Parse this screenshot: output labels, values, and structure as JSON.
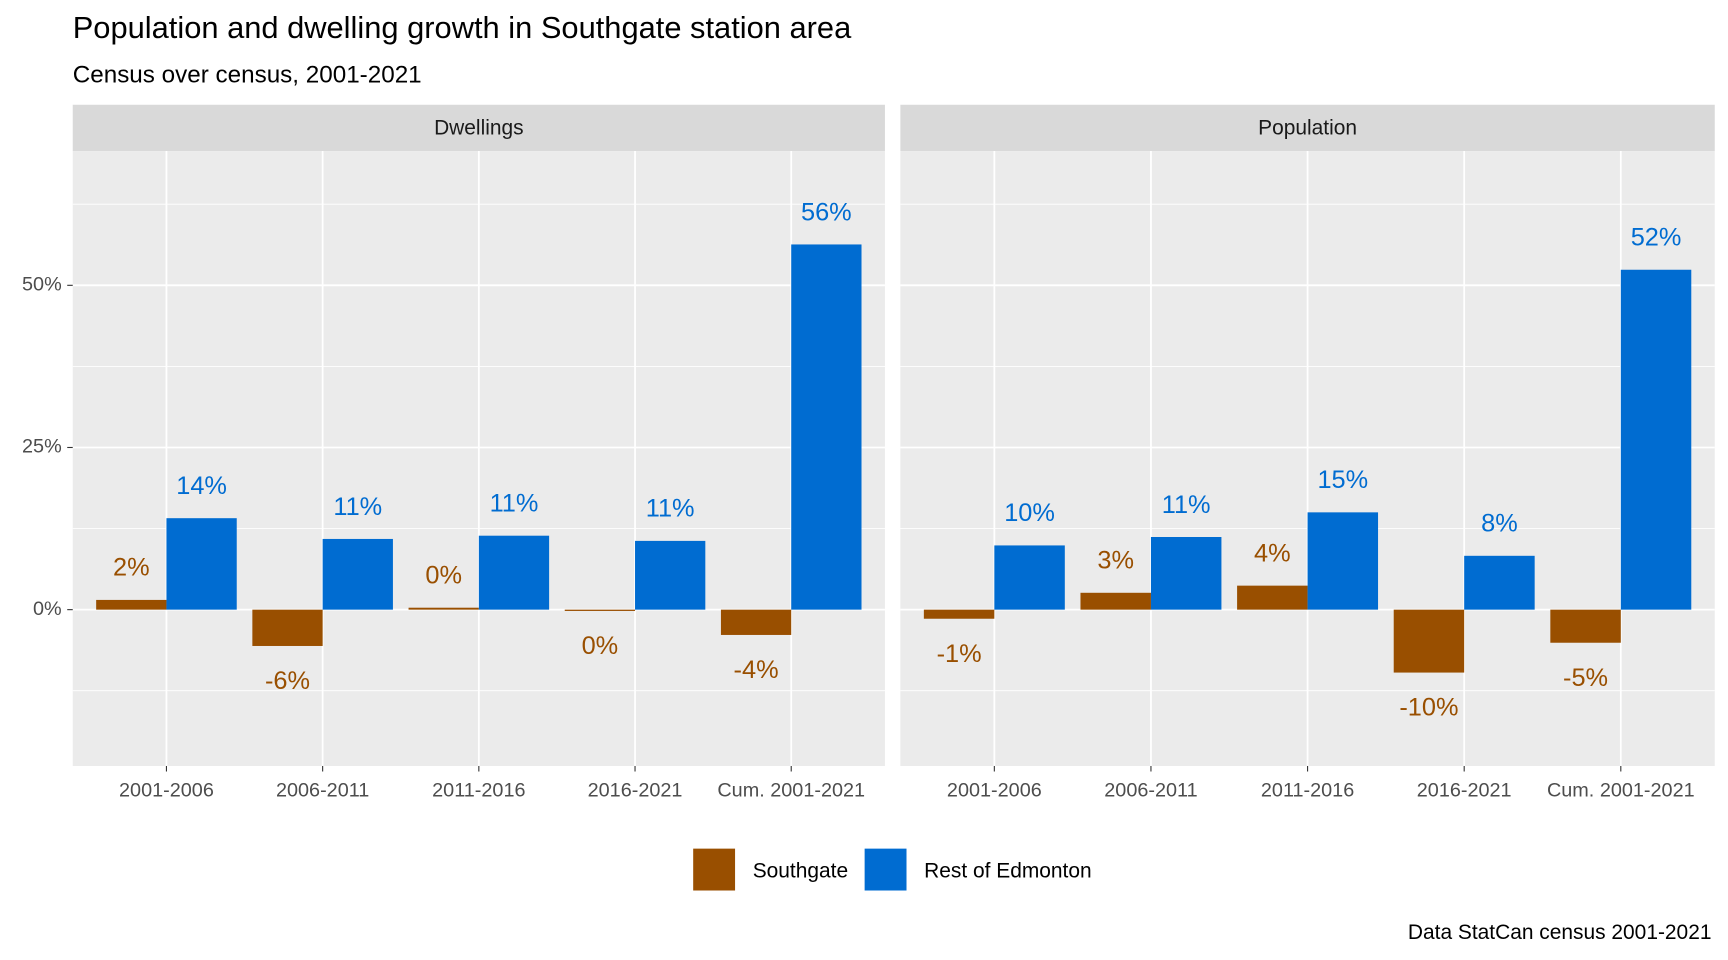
{
  "title": "Population and dwelling growth in Southgate station area",
  "subtitle": "Census over census, 2001-2021",
  "caption": "Data StatCan census 2001-2021",
  "chart_data": [
    {
      "type": "bar",
      "facet": "Dwellings",
      "categories": [
        "2001-2006",
        "2006-2011",
        "2011-2016",
        "2016-2021",
        "Cum. 2001-2021"
      ],
      "series": [
        {
          "name": "Southgate",
          "color": "#994f00",
          "values": [
            1.5,
            -5.6,
            0.3,
            -0.2,
            -3.9
          ],
          "value_labels": [
            "2%",
            "-6%",
            "0%",
            "0%",
            "-4%"
          ]
        },
        {
          "name": "Rest of Edmonton",
          "color": "#006cd1",
          "values": [
            14.1,
            10.9,
            11.4,
            10.6,
            56.3
          ],
          "value_labels": [
            "14%",
            "11%",
            "11%",
            "11%",
            "56%"
          ]
        }
      ],
      "ylim": [
        -24.1,
        70.7
      ],
      "yticks": [
        {
          "value": 0,
          "label": "0%"
        },
        {
          "value": 25,
          "label": "25%"
        },
        {
          "value": 50,
          "label": "50%"
        }
      ],
      "grid": true
    },
    {
      "type": "bar",
      "facet": "Population",
      "categories": [
        "2001-2006",
        "2006-2011",
        "2011-2016",
        "2016-2021",
        "Cum. 2001-2021"
      ],
      "series": [
        {
          "name": "Southgate",
          "color": "#994f00",
          "values": [
            -1.4,
            2.6,
            3.7,
            -9.7,
            -5.1
          ],
          "value_labels": [
            "-1%",
            "3%",
            "4%",
            "-10%",
            "-5%"
          ]
        },
        {
          "name": "Rest of Edmonton",
          "color": "#006cd1",
          "values": [
            9.9,
            11.2,
            15.0,
            8.3,
            52.4
          ],
          "value_labels": [
            "10%",
            "11%",
            "15%",
            "8%",
            "52%"
          ]
        }
      ],
      "ylim": [
        -24.1,
        70.7
      ],
      "yticks": [
        {
          "value": 0,
          "label": "0%"
        },
        {
          "value": 25,
          "label": "25%"
        },
        {
          "value": 50,
          "label": "50%"
        }
      ],
      "grid": true
    }
  ]
}
